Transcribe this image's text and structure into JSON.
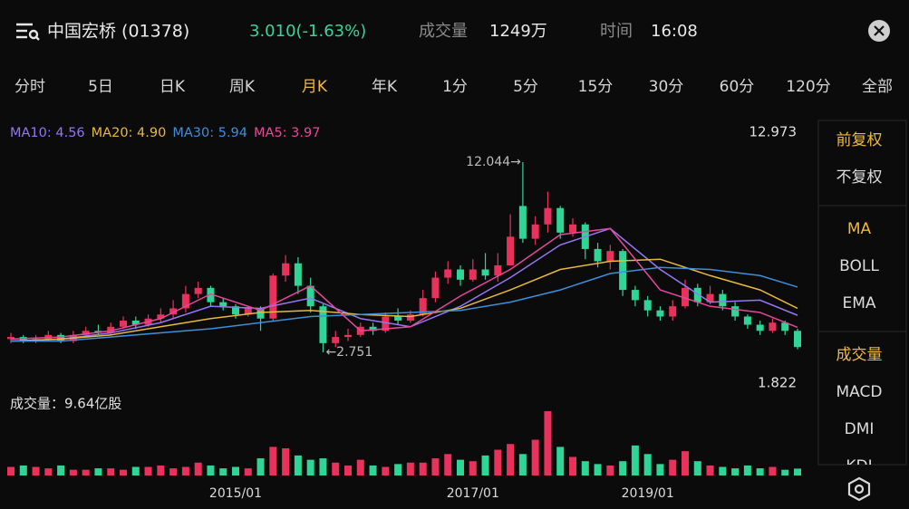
{
  "header": {
    "name": "中国宏桥 (01378)",
    "price_change": "3.010(-1.63%)",
    "volume_label": "成交量",
    "volume": "1249万",
    "time_label": "时间",
    "time": "16:08"
  },
  "tabs": {
    "items": [
      "分时",
      "5日",
      "日K",
      "周K",
      "月K",
      "年K",
      "1分",
      "5分",
      "15分",
      "30分",
      "60分",
      "120分",
      "全部"
    ],
    "active": 4
  },
  "side_panel": [
    {
      "items": [
        "前复权",
        "不复权"
      ],
      "active": 0
    },
    {
      "items": [
        "MA",
        "BOLL",
        "EMA"
      ],
      "active": 0
    },
    {
      "items": [
        "成交量",
        "MACD",
        "DMI",
        "KDJ"
      ],
      "active": 0
    }
  ],
  "chart_data": {
    "type": "candlestick",
    "up_color": "#e8315b",
    "down_color": "#2fd597",
    "categories": [
      null,
      null,
      null,
      null,
      null,
      null,
      null,
      null,
      null,
      null,
      null,
      null,
      null,
      null,
      null,
      null,
      null,
      null,
      "2015/01",
      null,
      null,
      null,
      null,
      null,
      null,
      null,
      null,
      null,
      null,
      null,
      null,
      null,
      null,
      null,
      null,
      null,
      null,
      "2017/01",
      null,
      null,
      null,
      null,
      null,
      null,
      null,
      null,
      null,
      null,
      null,
      null,
      null,
      "2019/01",
      null,
      null,
      null,
      null,
      null,
      null,
      null,
      null,
      null,
      null,
      null,
      null
    ],
    "open": [
      3.4,
      3.5,
      3.3,
      3.4,
      3.6,
      3.3,
      3.6,
      3.8,
      3.7,
      4.0,
      4.3,
      4.1,
      4.4,
      4.6,
      4.9,
      5.6,
      5.9,
      5.2,
      5.0,
      4.6,
      4.9,
      4.4,
      6.5,
      7.1,
      6.0,
      5.0,
      3.2,
      3.5,
      3.6,
      4.0,
      3.8,
      4.5,
      4.3,
      4.6,
      5.4,
      6.4,
      6.8,
      6.3,
      6.8,
      6.5,
      7.0,
      9.9,
      8.3,
      9.0,
      9.8,
      8.6,
      9.0,
      7.8,
      7.2,
      7.7,
      5.8,
      5.3,
      4.8,
      4.5,
      5.0,
      5.9,
      5.2,
      5.6,
      5.0,
      4.5,
      4.1,
      3.8,
      4.2,
      3.8
    ],
    "close": [
      3.5,
      3.3,
      3.4,
      3.6,
      3.3,
      3.6,
      3.8,
      3.7,
      4.0,
      4.3,
      4.1,
      4.4,
      4.6,
      4.9,
      5.6,
      5.9,
      5.2,
      5.0,
      4.6,
      4.9,
      4.4,
      6.5,
      7.1,
      6.0,
      5.0,
      3.2,
      3.5,
      3.6,
      4.0,
      3.8,
      4.5,
      4.3,
      4.6,
      5.4,
      6.4,
      6.8,
      6.3,
      6.8,
      6.5,
      7.0,
      8.4,
      8.3,
      9.0,
      9.8,
      8.6,
      9.0,
      7.8,
      7.2,
      7.7,
      5.8,
      5.3,
      4.8,
      4.5,
      5.0,
      5.9,
      5.2,
      5.6,
      5.0,
      4.5,
      4.1,
      3.8,
      4.2,
      3.8,
      3.01
    ],
    "high": [
      3.7,
      3.6,
      3.6,
      3.8,
      3.7,
      3.8,
      4.0,
      4.1,
      4.2,
      4.5,
      4.5,
      4.6,
      4.9,
      5.3,
      6.0,
      6.2,
      6.0,
      5.4,
      5.1,
      5.0,
      5.0,
      6.6,
      7.5,
      7.4,
      6.4,
      5.1,
      3.8,
      3.9,
      4.2,
      4.2,
      4.7,
      4.9,
      4.8,
      5.8,
      6.7,
      7.2,
      7.0,
      7.3,
      7.6,
      7.6,
      9.5,
      12.044,
      9.4,
      10.6,
      9.9,
      9.3,
      9.1,
      8.1,
      8.0,
      7.8,
      6.0,
      5.5,
      5.0,
      5.3,
      6.3,
      6.1,
      6.0,
      5.8,
      5.2,
      4.6,
      4.3,
      4.4,
      4.3,
      3.9
    ],
    "low": [
      3.2,
      3.2,
      3.2,
      3.3,
      3.2,
      3.2,
      3.5,
      3.6,
      3.6,
      3.9,
      3.9,
      4.0,
      4.2,
      4.4,
      4.7,
      5.4,
      5.0,
      4.8,
      4.4,
      4.5,
      3.8,
      4.3,
      6.2,
      5.6,
      4.7,
      2.751,
      3.0,
      3.3,
      3.5,
      3.6,
      3.7,
      4.1,
      4.2,
      4.5,
      5.2,
      6.1,
      6.0,
      6.2,
      6.3,
      6.2,
      7.0,
      8.1,
      8.0,
      8.6,
      8.3,
      8.4,
      7.3,
      6.9,
      6.8,
      5.5,
      5.0,
      4.5,
      4.3,
      4.3,
      4.9,
      5.0,
      5.1,
      4.8,
      4.3,
      3.9,
      3.6,
      3.7,
      3.6,
      2.9
    ],
    "ylim": [
      1.822,
      12.973
    ],
    "yticks": [
      12.973,
      1.822
    ],
    "annotations": [
      {
        "text": "12.044→",
        "x": 41,
        "y": 12.044
      },
      {
        "text": "←2.751",
        "x": 25,
        "y": 2.751
      }
    ],
    "series": [
      {
        "name": "MA10: 4.56",
        "color": "#9676f2",
        "x": [
          0,
          4,
          8,
          12,
          16,
          20,
          24,
          28,
          32,
          36,
          40,
          44,
          48,
          52,
          56,
          60,
          63
        ],
        "values": [
          3.3,
          3.4,
          3.7,
          4.2,
          5.0,
          4.9,
          5.4,
          4.4,
          4.0,
          5.0,
          6.4,
          8.0,
          8.8,
          6.8,
          5.2,
          5.3,
          4.56
        ]
      },
      {
        "name": "MA20: 4.90",
        "color": "#e8b93a",
        "x": [
          0,
          4,
          8,
          12,
          16,
          20,
          24,
          28,
          32,
          36,
          40,
          44,
          48,
          52,
          56,
          60,
          63
        ],
        "values": [
          3.3,
          3.4,
          3.6,
          4.0,
          4.4,
          4.7,
          4.8,
          4.6,
          4.5,
          4.9,
          5.8,
          6.8,
          7.2,
          7.3,
          6.5,
          5.8,
          4.9
        ]
      },
      {
        "name": "MA30: 5.94",
        "color": "#3d8fd9",
        "x": [
          0,
          4,
          8,
          12,
          16,
          20,
          24,
          28,
          32,
          36,
          40,
          44,
          48,
          52,
          56,
          60,
          63
        ],
        "values": [
          3.3,
          3.3,
          3.5,
          3.7,
          3.9,
          4.2,
          4.5,
          4.6,
          4.7,
          4.8,
          5.2,
          5.8,
          6.6,
          6.9,
          6.8,
          6.5,
          5.94
        ]
      },
      {
        "name": "MA5: 3.97",
        "color": "#e4489a",
        "x": [
          0,
          4,
          8,
          12,
          16,
          20,
          24,
          28,
          32,
          36,
          40,
          44,
          48,
          52,
          56,
          60,
          63
        ],
        "values": [
          3.4,
          3.5,
          3.8,
          4.4,
          5.6,
          4.8,
          6.0,
          3.8,
          4.0,
          5.5,
          6.8,
          8.5,
          8.8,
          5.8,
          5.0,
          4.7,
          3.97
        ]
      }
    ],
    "volume": {
      "label": "成交量：9.64亿股",
      "ylim": [
        0,
        95
      ],
      "values": [
        12,
        14,
        12,
        10,
        14,
        8,
        8,
        10,
        10,
        8,
        12,
        12,
        14,
        10,
        12,
        18,
        14,
        10,
        12,
        10,
        24,
        40,
        38,
        28,
        22,
        24,
        18,
        14,
        22,
        14,
        12,
        16,
        18,
        18,
        24,
        30,
        22,
        20,
        28,
        36,
        44,
        30,
        50,
        90,
        40,
        26,
        20,
        16,
        14,
        20,
        42,
        30,
        16,
        22,
        34,
        20,
        14,
        12,
        10,
        14,
        10,
        12,
        8,
        9.64
      ]
    }
  }
}
